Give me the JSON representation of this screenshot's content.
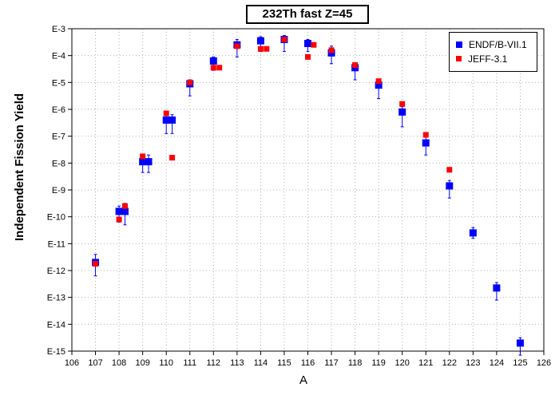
{
  "chart_data": {
    "type": "scatter",
    "title": "232Th fast Z=45",
    "xlabel": "A",
    "ylabel": "Independent Fission Yield",
    "xlim": [
      106,
      126
    ],
    "x_ticks": [
      "106",
      "107",
      "108",
      "109",
      "110",
      "111",
      "112",
      "113",
      "114",
      "115",
      "116",
      "117",
      "118",
      "119",
      "120",
      "121",
      "122",
      "123",
      "124",
      "125",
      "126"
    ],
    "y_scale": "log",
    "ylim_exponent": [
      -15,
      -3
    ],
    "y_ticks": [
      "E-3",
      "E-4",
      "E-5",
      "E-6",
      "E-7",
      "E-8",
      "E-9",
      "E-10",
      "E-11",
      "E-12",
      "E-13",
      "E-14",
      "E-15"
    ],
    "grid": "dotted",
    "legend_position": "top-right",
    "series": [
      {
        "name": "ENDF/B-VII.1",
        "color": "#0000ff",
        "marker": "square-large",
        "points": [
          {
            "x": 107.0,
            "y_exp": -11.7,
            "err_lo": 0.5,
            "err_hi": 0.3
          },
          {
            "x": 108.0,
            "y_exp": -9.8,
            "err_lo": 0.4,
            "err_hi": 0.2
          },
          {
            "x": 108.25,
            "y_exp": -9.8,
            "err_lo": 0.5,
            "err_hi": 0.3
          },
          {
            "x": 109.0,
            "y_exp": -7.95,
            "err_lo": 0.4,
            "err_hi": 0.25
          },
          {
            "x": 109.25,
            "y_exp": -7.95,
            "err_lo": 0.4,
            "err_hi": 0.25
          },
          {
            "x": 110.0,
            "y_exp": -6.4,
            "err_lo": 0.5,
            "err_hi": 0.2
          },
          {
            "x": 110.25,
            "y_exp": -6.4,
            "err_lo": 0.5,
            "err_hi": 0.2
          },
          {
            "x": 111.0,
            "y_exp": -5.05,
            "err_lo": 0.45,
            "err_hi": 0.15
          },
          {
            "x": 112.0,
            "y_exp": -4.2,
            "err_lo": 0.35,
            "err_hi": 0.15
          },
          {
            "x": 113.0,
            "y_exp": -3.6,
            "err_lo": 0.45,
            "err_hi": 0.2
          },
          {
            "x": 114.0,
            "y_exp": -3.45,
            "err_lo": 0.4,
            "err_hi": 0.15
          },
          {
            "x": 115.0,
            "y_exp": -3.4,
            "err_lo": 0.45,
            "err_hi": 0.15
          },
          {
            "x": 116.0,
            "y_exp": -3.55,
            "err_lo": 0.3,
            "err_hi": 0.15
          },
          {
            "x": 117.0,
            "y_exp": -3.9,
            "err_lo": 0.4,
            "err_hi": 0.25
          },
          {
            "x": 118.0,
            "y_exp": -4.45,
            "err_lo": 0.45,
            "err_hi": 0.15
          },
          {
            "x": 119.0,
            "y_exp": -5.1,
            "err_lo": 0.5,
            "err_hi": 0.2
          },
          {
            "x": 120.0,
            "y_exp": -6.1,
            "err_lo": 0.55,
            "err_hi": 0.2
          },
          {
            "x": 121.0,
            "y_exp": -7.25,
            "err_lo": 0.45,
            "err_hi": 0.25
          },
          {
            "x": 122.0,
            "y_exp": -8.85,
            "err_lo": 0.45,
            "err_hi": 0.2
          },
          {
            "x": 123.0,
            "y_exp": -10.6,
            "err_lo": 0.2,
            "err_hi": 0.2
          },
          {
            "x": 124.0,
            "y_exp": -12.65,
            "err_lo": 0.45,
            "err_hi": 0.2
          },
          {
            "x": 125.0,
            "y_exp": -14.7,
            "err_lo": 0.45,
            "err_hi": 0.2
          }
        ]
      },
      {
        "name": "JEFF-3.1",
        "color": "#ff0000",
        "marker": "square-small",
        "points": [
          {
            "x": 107.0,
            "y_exp": -11.75
          },
          {
            "x": 108.0,
            "y_exp": -10.1
          },
          {
            "x": 108.25,
            "y_exp": -9.6
          },
          {
            "x": 109.0,
            "y_exp": -7.75
          },
          {
            "x": 110.0,
            "y_exp": -6.15
          },
          {
            "x": 110.25,
            "y_exp": -7.8
          },
          {
            "x": 111.0,
            "y_exp": -5.0
          },
          {
            "x": 112.0,
            "y_exp": -4.45
          },
          {
            "x": 112.25,
            "y_exp": -4.45
          },
          {
            "x": 113.0,
            "y_exp": -3.65
          },
          {
            "x": 114.0,
            "y_exp": -3.75
          },
          {
            "x": 114.25,
            "y_exp": -3.75
          },
          {
            "x": 115.0,
            "y_exp": -3.4
          },
          {
            "x": 116.0,
            "y_exp": -4.05
          },
          {
            "x": 116.25,
            "y_exp": -3.6
          },
          {
            "x": 117.0,
            "y_exp": -3.8
          },
          {
            "x": 118.0,
            "y_exp": -4.35
          },
          {
            "x": 119.0,
            "y_exp": -4.95
          },
          {
            "x": 120.0,
            "y_exp": -5.8
          },
          {
            "x": 121.0,
            "y_exp": -6.95
          },
          {
            "x": 122.0,
            "y_exp": -8.25
          }
        ]
      }
    ]
  }
}
